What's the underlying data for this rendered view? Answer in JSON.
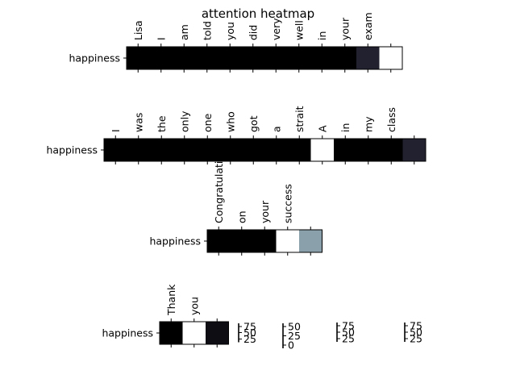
{
  "chart_data": {
    "type": "heatmap",
    "title": "attention heatmap",
    "colormap": "bone",
    "panels": [
      {
        "row_label": "happiness",
        "tokens": [
          "Lisa",
          "I",
          "am",
          "told",
          "you",
          "did",
          "very",
          "well",
          "in",
          "your",
          "exam",
          ""
        ],
        "values": [
          0.0,
          0.0,
          0.0,
          0.0,
          0.0,
          0.0,
          0.0,
          0.0,
          0.0,
          0.0,
          0.15,
          1.0
        ]
      },
      {
        "row_label": "happiness",
        "tokens": [
          "I",
          "was",
          "the",
          "only",
          "one",
          "who",
          "got",
          "a",
          "strait",
          "A",
          "in",
          "my",
          "class",
          ""
        ],
        "values": [
          0.0,
          0.0,
          0.0,
          0.0,
          0.0,
          0.0,
          0.0,
          0.0,
          0.0,
          1.0,
          0.0,
          0.0,
          0.0,
          0.15
        ]
      },
      {
        "row_label": "happiness",
        "tokens": [
          "Congratulations",
          "on",
          "your",
          "success",
          ""
        ],
        "values": [
          0.0,
          0.0,
          0.0,
          1.0,
          0.62
        ]
      },
      {
        "row_label": "happiness",
        "tokens": [
          "Thank",
          "you",
          ""
        ],
        "values": [
          0.0,
          1.0,
          0.06
        ]
      }
    ],
    "colorbars": [
      {
        "ticks": [
          "75",
          "50",
          "25"
        ]
      },
      {
        "ticks": [
          "50",
          "25",
          "0"
        ]
      },
      {
        "ticks": [
          "75",
          "50",
          "25"
        ]
      },
      {
        "ticks": [
          "75",
          "50",
          "25"
        ]
      }
    ]
  }
}
